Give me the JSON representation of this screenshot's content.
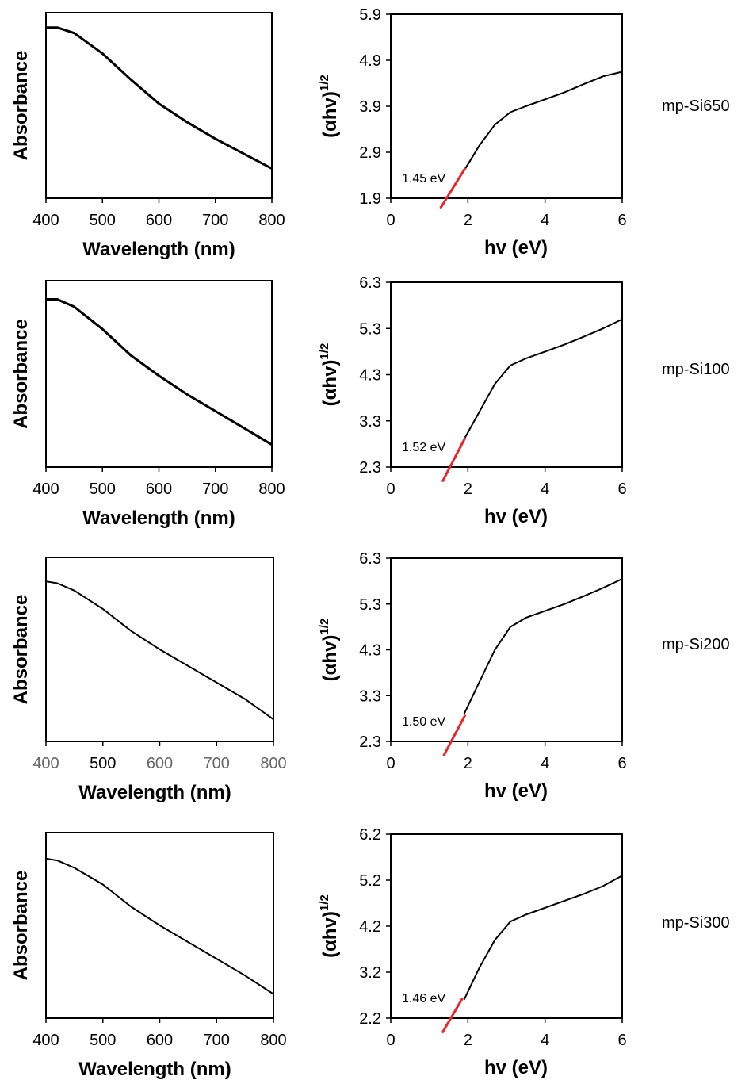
{
  "chart_data": [
    {
      "type": "line",
      "sample": "mp-Si650",
      "absorbance": {
        "xlabel": "Wavelength (nm)",
        "ylabel": "Absorbance",
        "xlim": [
          400,
          800
        ],
        "x_ticks": [
          "400",
          "500",
          "600",
          "700",
          "800"
        ],
        "y_ticks": [],
        "series": [
          {
            "x": [
              400,
              420,
              450,
              500,
              550,
              600,
              650,
              700,
              750,
              800
            ],
            "y": [
              0.92,
              0.92,
              0.89,
              0.78,
              0.64,
              0.51,
              0.41,
              0.32,
              0.24,
              0.16
            ]
          }
        ]
      },
      "tauc": {
        "xlabel": "hv (eV)",
        "ylabel": "(αhv)",
        "ylabel_sup": "1/2",
        "xlim": [
          0,
          6
        ],
        "ylim": [
          1.9,
          5.9
        ],
        "x_ticks": [
          "0",
          "2",
          "4",
          "6"
        ],
        "y_ticks": [
          "5.9",
          "4.9",
          "3.9",
          "2.9",
          "1.9"
        ],
        "series": [
          {
            "x": [
              1.9,
              2.3,
              2.7,
              3.1,
              3.5,
              4.0,
              4.5,
              5.0,
              5.5,
              6.0
            ],
            "y": [
              2.5,
              3.05,
              3.5,
              3.77,
              3.9,
              4.05,
              4.2,
              4.38,
              4.55,
              4.65
            ]
          }
        ],
        "fit_line": {
          "x": [
            1.3,
            1.92
          ],
          "y": [
            1.7,
            2.54
          ]
        },
        "band_gap_label": "1.45 eV"
      }
    },
    {
      "type": "line",
      "sample": "mp-Si100",
      "absorbance": {
        "xlabel": "Wavelength (nm)",
        "ylabel": "Absorbance",
        "xlim": [
          400,
          800
        ],
        "x_ticks": [
          "400",
          "500",
          "600",
          "700",
          "800"
        ],
        "y_ticks": [],
        "series": [
          {
            "x": [
              400,
              420,
              450,
              500,
              550,
              600,
              650,
              700,
              750,
              800
            ],
            "y": [
              0.9,
              0.9,
              0.86,
              0.74,
              0.6,
              0.49,
              0.39,
              0.3,
              0.21,
              0.12
            ]
          }
        ]
      },
      "tauc": {
        "xlabel": "hv (eV)",
        "ylabel": "(αhv)",
        "ylabel_sup": "1/2",
        "xlim": [
          0,
          6
        ],
        "ylim": [
          2.3,
          6.3
        ],
        "x_ticks": [
          "0",
          "2",
          "4",
          "6"
        ],
        "y_ticks": [
          "6.3",
          "5.3",
          "4.3",
          "3.3",
          "2.3"
        ],
        "series": [
          {
            "x": [
              1.9,
              2.3,
              2.7,
              3.1,
              3.5,
              4.0,
              4.5,
              5.0,
              5.5,
              6.0
            ],
            "y": [
              2.9,
              3.5,
              4.1,
              4.5,
              4.65,
              4.8,
              4.95,
              5.12,
              5.3,
              5.5
            ]
          }
        ],
        "fit_line": {
          "x": [
            1.35,
            1.92
          ],
          "y": [
            2.0,
            2.92
          ]
        },
        "band_gap_label": "1.52 eV"
      }
    },
    {
      "type": "line",
      "sample": "mp-Si200",
      "absorbance": {
        "xlabel": "Wavelength (nm)",
        "ylabel": "Absorbance",
        "xlim": [
          400,
          800
        ],
        "x_ticks": [
          "400",
          "500",
          "600",
          "700",
          "800"
        ],
        "y_ticks": [],
        "series": [
          {
            "x": [
              400,
              420,
              450,
              500,
              550,
              600,
              650,
              700,
              750,
              800
            ],
            "y": [
              0.87,
              0.86,
              0.82,
              0.72,
              0.6,
              0.5,
              0.41,
              0.32,
              0.23,
              0.12
            ]
          }
        ]
      },
      "tauc": {
        "xlabel": "hv (eV)",
        "ylabel": "(αhv)",
        "ylabel_sup": "1/2",
        "xlim": [
          0,
          6
        ],
        "ylim": [
          2.3,
          6.3
        ],
        "x_ticks": [
          "0",
          "2",
          "4",
          "6"
        ],
        "y_ticks": [
          "6.3",
          "5.3",
          "4.3",
          "3.3",
          "2.3"
        ],
        "series": [
          {
            "x": [
              1.9,
              2.3,
              2.7,
              3.1,
              3.5,
              4.0,
              4.5,
              5.0,
              5.5,
              6.0
            ],
            "y": [
              2.9,
              3.6,
              4.3,
              4.8,
              5.0,
              5.15,
              5.3,
              5.47,
              5.65,
              5.85
            ]
          }
        ],
        "fit_line": {
          "x": [
            1.38,
            1.92
          ],
          "y": [
            2.0,
            2.86
          ]
        },
        "band_gap_label": "1.50 eV"
      }
    },
    {
      "type": "line",
      "sample": "mp-Si300",
      "absorbance": {
        "xlabel": "Wavelength (nm)",
        "ylabel": "Absorbance",
        "xlim": [
          400,
          800
        ],
        "x_ticks": [
          "400",
          "500",
          "600",
          "700",
          "800"
        ],
        "y_ticks": [],
        "series": [
          {
            "x": [
              400,
              420,
              450,
              500,
              550,
              600,
              650,
              700,
              750,
              800
            ],
            "y": [
              0.86,
              0.85,
              0.81,
              0.72,
              0.6,
              0.5,
              0.41,
              0.32,
              0.23,
              0.13
            ]
          }
        ]
      },
      "tauc": {
        "xlabel": "hv (eV)",
        "ylabel": "(αhv)",
        "ylabel_sup": "1/2",
        "xlim": [
          0,
          6
        ],
        "ylim": [
          2.2,
          6.2
        ],
        "x_ticks": [
          "0",
          "2",
          "4",
          "6"
        ],
        "y_ticks": [
          "6.2",
          "5.2",
          "4.2",
          "3.2",
          "2.2"
        ],
        "series": [
          {
            "x": [
              1.9,
              2.3,
              2.7,
              3.1,
              3.5,
              4.0,
              4.5,
              5.0,
              5.5,
              6.0
            ],
            "y": [
              2.6,
              3.3,
              3.9,
              4.3,
              4.45,
              4.6,
              4.75,
              4.9,
              5.07,
              5.3
            ]
          }
        ],
        "fit_line": {
          "x": [
            1.35,
            1.85
          ],
          "y": [
            1.9,
            2.62
          ]
        },
        "band_gap_label": "1.46 eV"
      }
    }
  ]
}
